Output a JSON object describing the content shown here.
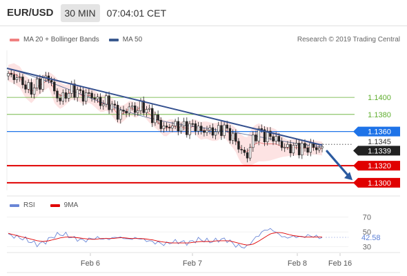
{
  "header": {
    "pair": "EUR/USD",
    "timeframe": "30 MIN",
    "time": "07:04:01 CET"
  },
  "legend_main": [
    {
      "label": "MA 20 + Bollinger Bands",
      "color": "#f08080"
    },
    {
      "label": "MA 50",
      "color": "#3b5a8f"
    }
  ],
  "credit": "Research © 2019 Trading Central",
  "legend_rsi": [
    {
      "label": "RSI",
      "color": "#6a86d6"
    },
    {
      "label": "9MA",
      "color": "#e00000"
    }
  ],
  "chart_data": [
    {
      "type": "candlestick",
      "title": "",
      "ylim": [
        1.1291,
        1.1455
      ],
      "current_price": "1.1339",
      "price_levels": [
        {
          "label": "1.1400",
          "value": 1.14,
          "color": "#5fae2e",
          "style": "thin"
        },
        {
          "label": "1.1380",
          "value": 1.138,
          "color": "#5fae2e",
          "style": "thin"
        },
        {
          "label": "1.1360",
          "value": 1.136,
          "color": "#1e73e8",
          "style": "pivot"
        },
        {
          "label": "1.1345",
          "value": 1.1345,
          "color": "#333333",
          "style": "dotted"
        },
        {
          "label": "1.1320",
          "value": 1.132,
          "color": "#e00000",
          "style": "thick"
        },
        {
          "label": "1.1300",
          "value": 1.13,
          "color": "#e00000",
          "style": "thick"
        }
      ],
      "trendline": {
        "from": 1.1434,
        "to": 1.1344
      },
      "forecast_arrow": {
        "from": 1.1337,
        "to": 1.1303
      },
      "x_ticks": [
        "Feb 6",
        "Feb 7",
        "Feb 8",
        "Feb 16"
      ],
      "close_path": [
        1.1425,
        1.1424,
        1.1421,
        1.1412,
        1.1409,
        1.1415,
        1.142,
        1.1425,
        1.1404,
        1.1397,
        1.1404,
        1.1409,
        1.1406,
        1.1401,
        1.1404,
        1.1398,
        1.1393,
        1.1395,
        1.1389,
        1.138,
        1.1383,
        1.1389,
        1.1384,
        1.1391,
        1.1383,
        1.1377,
        1.137,
        1.1362,
        1.1368,
        1.1366,
        1.1366,
        1.1364,
        1.1368,
        1.136,
        1.1362,
        1.136,
        1.136,
        1.1365,
        1.1358,
        1.135,
        1.1338,
        1.133,
        1.1349,
        1.1361,
        1.1356,
        1.1354,
        1.1352,
        1.1344,
        1.134,
        1.1342,
        1.1341,
        1.134,
        1.1342,
        1.1341,
        1.1339
      ],
      "bollinger": {
        "upper_path": [
          1.1438,
          1.144,
          1.1436,
          1.1425,
          1.142,
          1.1424,
          1.1426,
          1.143,
          1.1425,
          1.1417,
          1.1414,
          1.1418,
          1.1414,
          1.141,
          1.1412,
          1.1407,
          1.1402,
          1.1404,
          1.1398,
          1.139,
          1.1391,
          1.1397,
          1.1393,
          1.1399,
          1.1393,
          1.1385,
          1.1378,
          1.1372,
          1.1375,
          1.1372,
          1.1372,
          1.1371,
          1.1375,
          1.1371,
          1.1372,
          1.137,
          1.137,
          1.1373,
          1.137,
          1.1365,
          1.1357,
          1.1352,
          1.1365,
          1.137,
          1.1366,
          1.1365,
          1.1363,
          1.1355,
          1.135,
          1.1351,
          1.135,
          1.1349,
          1.135,
          1.1349,
          1.1348
        ],
        "lower_path": [
          1.1419,
          1.1416,
          1.1411,
          1.1399,
          1.1393,
          1.1401,
          1.1407,
          1.1412,
          1.1392,
          1.1386,
          1.1392,
          1.1398,
          1.1396,
          1.1391,
          1.1394,
          1.1388,
          1.1382,
          1.1385,
          1.1377,
          1.1368,
          1.1373,
          1.138,
          1.1375,
          1.1382,
          1.1372,
          1.1366,
          1.136,
          1.1353,
          1.1359,
          1.1358,
          1.1358,
          1.1355,
          1.1359,
          1.135,
          1.1352,
          1.1349,
          1.1349,
          1.1355,
          1.1346,
          1.1338,
          1.1323,
          1.1319,
          1.1321,
          1.1325,
          1.1325,
          1.1326,
          1.1328,
          1.133,
          1.1331,
          1.1332,
          1.1332,
          1.1332,
          1.1333,
          1.1333,
          1.1332
        ]
      }
    },
    {
      "type": "line",
      "title": "",
      "ylim": [
        22,
        80
      ],
      "y_ticks": [
        "70",
        "50",
        "30"
      ],
      "current_value": "42.58",
      "rsi_path": [
        46,
        44,
        42,
        40,
        36,
        33,
        35,
        40,
        45,
        47,
        46,
        42,
        40,
        38,
        40,
        42,
        41,
        40,
        42,
        43,
        41,
        40,
        42,
        40,
        38,
        36,
        35,
        33,
        36,
        37,
        36,
        35,
        38,
        40,
        38,
        37,
        39,
        40,
        38,
        32,
        30,
        29,
        38,
        45,
        52,
        54,
        50,
        44,
        42,
        44,
        43,
        44,
        45,
        43,
        42.58
      ],
      "ma9_path": [
        48,
        46,
        44,
        42,
        40,
        38,
        37,
        38,
        40,
        42,
        43,
        43,
        42,
        41,
        40,
        40,
        41,
        41,
        41,
        42,
        42,
        41,
        41,
        41,
        40,
        39,
        37,
        36,
        35,
        35,
        35,
        35,
        36,
        37,
        37,
        37,
        38,
        38,
        38,
        36,
        34,
        32,
        33,
        37,
        42,
        47,
        49,
        49,
        47,
        45,
        44,
        43,
        43,
        43,
        43
      ]
    }
  ]
}
